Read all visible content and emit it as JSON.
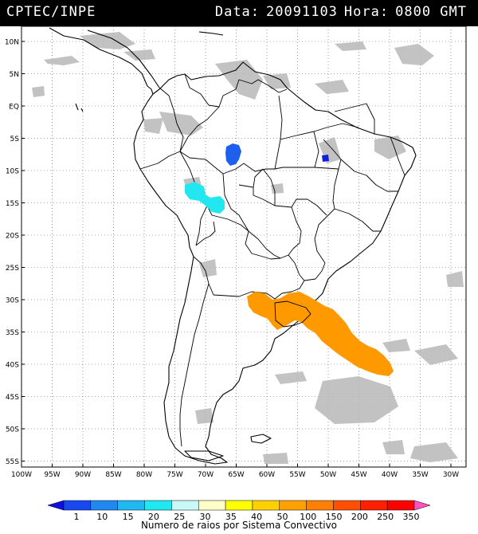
{
  "header": {
    "source": "CPTEC/INPE",
    "date_label": "Data:",
    "date_value": "20091103",
    "hour_label": "Hora:",
    "hour_value": "0800 GMT"
  },
  "map": {
    "lat_ticks": [
      "10N",
      "5N",
      "EQ",
      "5S",
      "10S",
      "15S",
      "20S",
      "25S",
      "30S",
      "35S",
      "40S",
      "45S",
      "50S",
      "55S"
    ],
    "lon_ticks": [
      "100W",
      "95W",
      "90W",
      "85W",
      "80W",
      "75W",
      "70W",
      "65W",
      "60W",
      "55W",
      "50W",
      "45W",
      "40W",
      "35W",
      "30W"
    ],
    "systems": [
      {
        "id": "rondonia-cluster",
        "color": "#1f5ff0"
      },
      {
        "id": "tocantins-cluster",
        "color": "#1020d8"
      },
      {
        "id": "bolivia-cluster",
        "color": "#22e6f0"
      },
      {
        "id": "uruguay-atlantic-cluster",
        "color": "#ff9900"
      }
    ]
  },
  "colorbar": {
    "labels": [
      "1",
      "10",
      "15",
      "20",
      "25",
      "30",
      "35",
      "40",
      "50",
      "100",
      "150",
      "200",
      "250",
      "350"
    ],
    "colors": [
      "#1010e0",
      "#1848f0",
      "#2088f0",
      "#20b8f0",
      "#20e8f0",
      "#c8f8f8",
      "#ffffc8",
      "#ffff00",
      "#ffd000",
      "#ffa000",
      "#ff8000",
      "#ff5000",
      "#ff2000",
      "#ff0000",
      "#ff50c0"
    ],
    "caption": "Numero de raios por Sistema Convectivo"
  }
}
